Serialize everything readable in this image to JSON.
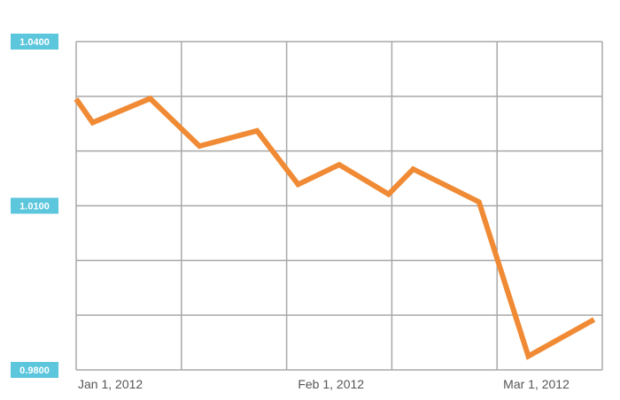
{
  "chart_data": {
    "type": "line",
    "title": "",
    "xlabel": "",
    "ylabel": "",
    "ylim": [
      0.98,
      1.04
    ],
    "grid": true,
    "y_ticks": [
      "1.0400",
      "1.0100",
      "0.9800"
    ],
    "x_ticks": [
      "Jan 1, 2012",
      "Feb 1, 2012",
      "Mar 1, 2012"
    ],
    "x_tick_dates": [
      "2012-01-01",
      "2012-02-01",
      "2012-03-01"
    ],
    "x_range": [
      "2012-01-01",
      "2012-03-05"
    ],
    "series": [
      {
        "color": "#f08a34",
        "x": [
          "2012-01-01",
          "2012-01-03",
          "2012-01-10",
          "2012-01-16",
          "2012-01-23",
          "2012-01-28",
          "2012-02-02",
          "2012-02-08",
          "2012-02-11",
          "2012-02-19",
          "2012-02-25",
          "2012-03-04"
        ],
        "values": [
          1.0295,
          1.0252,
          1.0296,
          1.0209,
          1.0237,
          1.0139,
          1.0175,
          1.0121,
          1.0167,
          1.0107,
          0.9825,
          0.9892
        ]
      }
    ]
  }
}
